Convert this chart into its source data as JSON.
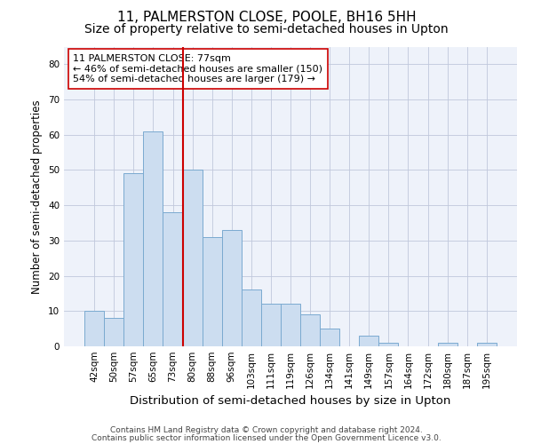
{
  "title1": "11, PALMERSTON CLOSE, POOLE, BH16 5HH",
  "title2": "Size of property relative to semi-detached houses in Upton",
  "xlabel": "Distribution of semi-detached houses by size in Upton",
  "ylabel": "Number of semi-detached properties",
  "categories": [
    "42sqm",
    "50sqm",
    "57sqm",
    "65sqm",
    "73sqm",
    "80sqm",
    "88sqm",
    "96sqm",
    "103sqm",
    "111sqm",
    "119sqm",
    "126sqm",
    "134sqm",
    "141sqm",
    "149sqm",
    "157sqm",
    "164sqm",
    "172sqm",
    "180sqm",
    "187sqm",
    "195sqm"
  ],
  "values": [
    10,
    8,
    49,
    61,
    38,
    50,
    31,
    33,
    16,
    12,
    12,
    9,
    5,
    0,
    3,
    1,
    0,
    0,
    1,
    0,
    1
  ],
  "bar_color": "#ccddf0",
  "bar_edge_color": "#7aaad0",
  "vline_x": 4.5,
  "vline_color": "#cc0000",
  "annotation_line1": "11 PALMERSTON CLOSE: 77sqm",
  "annotation_line2": "← 46% of semi-detached houses are smaller (150)",
  "annotation_line3": "54% of semi-detached houses are larger (179) →",
  "annotation_box_color": "white",
  "annotation_box_edge": "#cc0000",
  "ylim": [
    0,
    85
  ],
  "yticks": [
    0,
    10,
    20,
    30,
    40,
    50,
    60,
    70,
    80
  ],
  "grid_color": "#c0c8dc",
  "background_color": "#eef2fa",
  "footer1": "Contains HM Land Registry data © Crown copyright and database right 2024.",
  "footer2": "Contains public sector information licensed under the Open Government Licence v3.0.",
  "title1_fontsize": 11,
  "title2_fontsize": 10,
  "tick_fontsize": 7.5,
  "ylabel_fontsize": 8.5,
  "xlabel_fontsize": 9.5,
  "footer_fontsize": 6.5,
  "annot_fontsize": 8
}
